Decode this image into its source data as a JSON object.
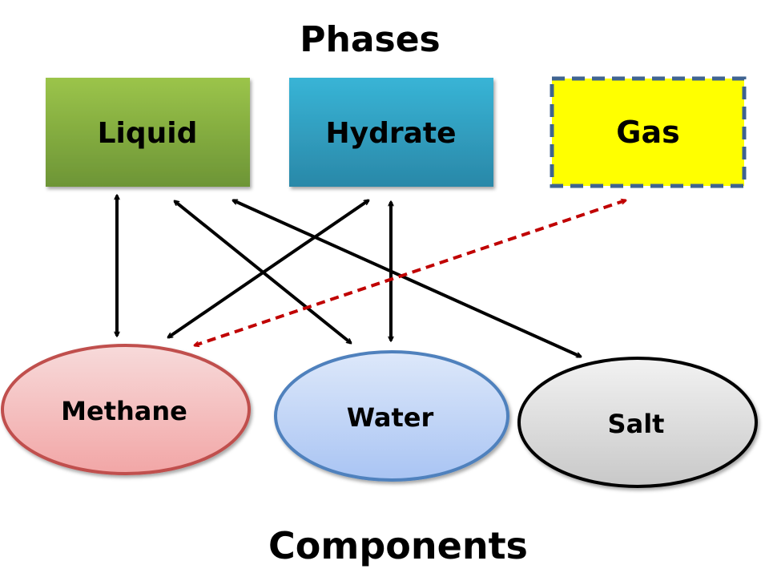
{
  "headings": {
    "top": "Phases",
    "bottom": "Components"
  },
  "phases": [
    {
      "id": "liquid",
      "label": "Liquid",
      "fill_top": "#9bc44a",
      "fill_bottom": "#6d9536",
      "border": "none"
    },
    {
      "id": "hydrate",
      "label": "Hydrate",
      "fill_top": "#38b4d6",
      "fill_bottom": "#2a88a8",
      "border": "none"
    },
    {
      "id": "gas",
      "label": "Gas",
      "fill_top": "#ffff00",
      "fill_bottom": "#ffff00",
      "border": "dashed",
      "border_color": "#3f6390"
    }
  ],
  "components": [
    {
      "id": "methane",
      "label": "Methane",
      "fill_top": "#f7dada",
      "fill_bottom": "#f2a6a6",
      "stroke": "#c0504d"
    },
    {
      "id": "water",
      "label": "Water",
      "fill_top": "#dde8fa",
      "fill_bottom": "#a9c4f3",
      "stroke": "#4f81bd"
    },
    {
      "id": "salt",
      "label": "Salt",
      "fill_top": "#f2f2f2",
      "fill_bottom": "#c8c8c8",
      "stroke": "#000000"
    }
  ],
  "connections": [
    {
      "from": "liquid",
      "to": "methane",
      "style": "solid",
      "color": "#000000"
    },
    {
      "from": "liquid",
      "to": "water",
      "style": "solid",
      "color": "#000000"
    },
    {
      "from": "liquid",
      "to": "salt",
      "style": "solid",
      "color": "#000000"
    },
    {
      "from": "hydrate",
      "to": "methane",
      "style": "solid",
      "color": "#000000"
    },
    {
      "from": "hydrate",
      "to": "water",
      "style": "solid",
      "color": "#000000"
    },
    {
      "from": "gas",
      "to": "methane",
      "style": "dashed",
      "color": "#c00000"
    }
  ]
}
